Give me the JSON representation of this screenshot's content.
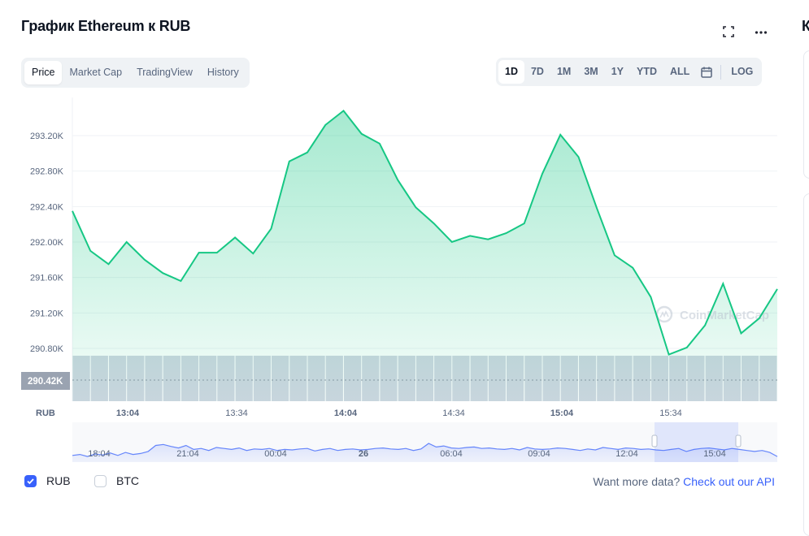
{
  "header": {
    "title": "График Ethereum к RUB",
    "cut_letter": "К"
  },
  "icons": {
    "fullscreen": "fullscreen-icon",
    "more": "more-dots-icon",
    "calendar": "calendar-icon",
    "check": "check-icon"
  },
  "tabs": [
    {
      "label": "Price",
      "active": true
    },
    {
      "label": "Market Cap",
      "active": false
    },
    {
      "label": "TradingView",
      "active": false
    },
    {
      "label": "History",
      "active": false
    }
  ],
  "ranges": [
    {
      "label": "1D",
      "active": true
    },
    {
      "label": "7D",
      "active": false
    },
    {
      "label": "1M",
      "active": false
    },
    {
      "label": "3M",
      "active": false
    },
    {
      "label": "1Y",
      "active": false
    },
    {
      "label": "YTD",
      "active": false
    },
    {
      "label": "ALL",
      "active": false
    }
  ],
  "log_label": "LOG",
  "watermark": "CoinMarketCap",
  "chart_data": {
    "type": "area",
    "currency_label": "RUB",
    "y_ticks": [
      "293.20K",
      "292.80K",
      "292.40K",
      "292.00K",
      "291.60K",
      "291.20K",
      "290.80K"
    ],
    "y_tick_values": [
      293200,
      292800,
      292400,
      292000,
      291600,
      291200,
      290800
    ],
    "current_label": "290.42K",
    "x_ticks": [
      "13:04",
      "13:34",
      "14:04",
      "14:34",
      "15:04",
      "15:34"
    ],
    "x_tick_bold": [
      "13:04",
      "14:04",
      "15:04"
    ],
    "series": [
      {
        "values": [
          292350,
          291900,
          291750,
          292000,
          291800,
          291650,
          291560,
          291880,
          291880,
          292050,
          291870,
          292150,
          292910,
          293010,
          293320,
          293480,
          293220,
          293110,
          292700,
          292390,
          292210,
          292000,
          292070,
          292030,
          292100,
          292210,
          292770,
          293210,
          292960,
          292390,
          291850,
          291710,
          291380,
          290730,
          290810,
          291060,
          291530,
          290970,
          291140,
          291470
        ]
      }
    ],
    "ylim": [
      290420,
      293650
    ],
    "color": "#16c784",
    "navigator": {
      "x_ticks": [
        "18:04",
        "21:04",
        "00:04",
        "26",
        "06:04",
        "09:04",
        "12:04",
        "15:04"
      ],
      "x_tick_bold": [
        "26"
      ],
      "values": [
        50,
        48,
        52,
        47,
        49,
        45,
        50,
        44,
        48,
        46,
        42,
        30,
        28,
        32,
        35,
        30,
        38,
        36,
        40,
        34,
        36,
        38,
        35,
        40,
        37,
        38,
        36,
        40,
        38,
        39,
        37,
        36,
        41,
        38,
        36,
        40,
        38,
        37,
        39,
        38,
        36,
        35,
        37,
        38,
        36,
        40,
        37,
        26,
        33,
        31,
        35,
        36,
        34,
        33,
        36,
        35,
        37,
        38,
        36,
        39,
        34,
        37,
        38,
        37,
        35,
        36,
        38,
        40,
        37,
        39,
        34,
        36,
        38,
        35,
        36,
        38,
        37,
        39,
        40,
        38,
        36,
        42,
        38,
        36,
        35,
        37,
        39,
        36,
        38,
        40,
        42,
        40,
        44,
        52
      ]
    }
  },
  "legend": [
    {
      "label": "RUB",
      "checked": true
    },
    {
      "label": "BTC",
      "checked": false
    }
  ],
  "api": {
    "prefix": "Want more data? ",
    "link": "Check out our API"
  }
}
